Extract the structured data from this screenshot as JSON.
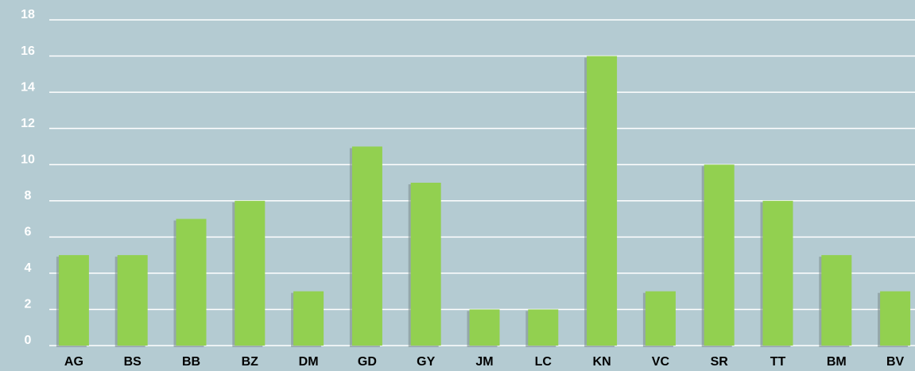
{
  "chart_data": {
    "type": "bar",
    "categories": [
      "AG",
      "BS",
      "BB",
      "BZ",
      "DM",
      "GD",
      "GY",
      "JM",
      "LC",
      "KN",
      "VC",
      "SR",
      "TT",
      "BM",
      "BV"
    ],
    "values": [
      5,
      5,
      7,
      8,
      3,
      11,
      9,
      2,
      2,
      16,
      3,
      10,
      8,
      5,
      3
    ],
    "color": "#92d050",
    "ylim": [
      0,
      18
    ],
    "yticks": [
      0,
      2,
      4,
      6,
      8,
      10,
      12,
      14,
      16,
      18
    ],
    "grid": true
  }
}
